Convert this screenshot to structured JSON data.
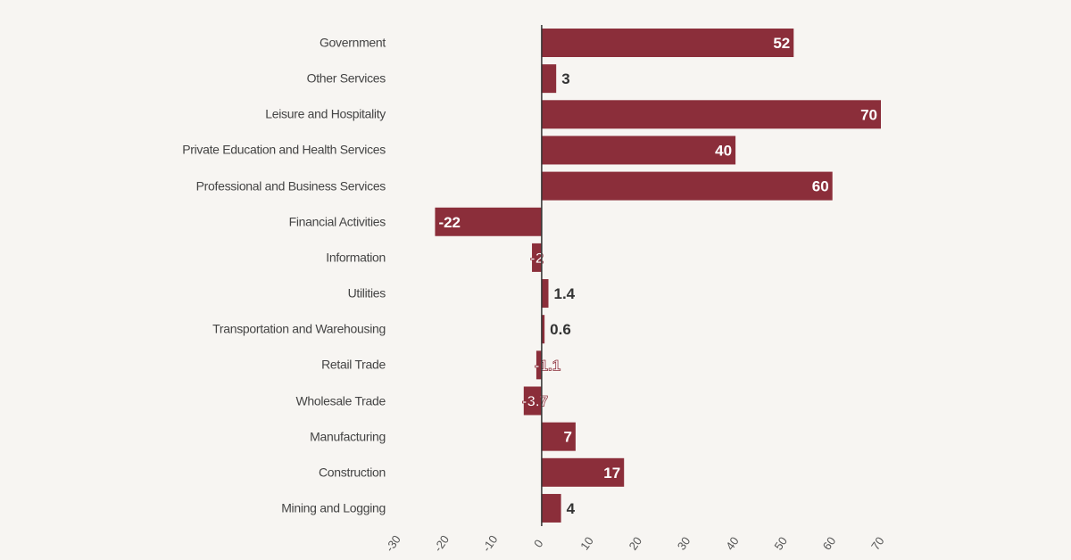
{
  "chart_data": {
    "type": "barh",
    "categories": [
      "Government",
      "Other Services",
      "Leisure and Hospitality",
      "Private Education and Health Services",
      "Professional and Business Services",
      "Financial Activities",
      "Information",
      "Utilities",
      "Transportation and Warehousing",
      "Retail Trade",
      "Wholesale Trade",
      "Manufacturing",
      "Construction",
      "Mining and Logging"
    ],
    "values": [
      52,
      3,
      70,
      40,
      60,
      -22,
      -2,
      1.4,
      0.6,
      -1.1,
      -3.7,
      7,
      17,
      4
    ],
    "color": "#8b2e3a",
    "xlim": [
      -30,
      70
    ],
    "xticks": [
      -30,
      -20,
      -10,
      0,
      10,
      20,
      30,
      40,
      50,
      60,
      70
    ],
    "grid": false
  }
}
